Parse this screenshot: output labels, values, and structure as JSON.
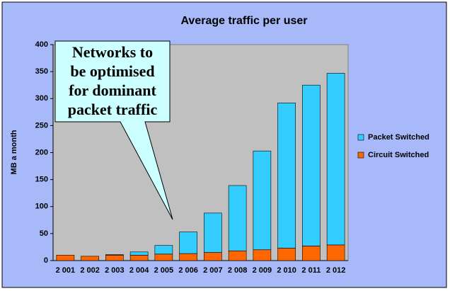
{
  "chart_data": {
    "type": "stacked_bar",
    "title": "Average traffic per user",
    "y_label": "MB a month",
    "categories": [
      "2 001",
      "2 002",
      "2 003",
      "2 004",
      "2 005",
      "2 006",
      "2 007",
      "2 008",
      "2 009",
      "2 010",
      "2 011",
      "2 012"
    ],
    "series": [
      {
        "name": "Circuit Switched",
        "color": "#ff6600",
        "values": [
          10,
          8,
          10,
          10,
          12,
          13,
          15,
          18,
          20,
          23,
          27,
          29
        ]
      },
      {
        "name": "Packet Switched",
        "color": "#33ccff",
        "values": [
          0,
          0,
          1,
          6,
          16,
          40,
          73,
          121,
          183,
          269,
          298,
          318
        ]
      }
    ],
    "ylim": [
      0,
      400
    ],
    "yticks": [
      0,
      50,
      100,
      150,
      200,
      250,
      300,
      350,
      400
    ],
    "grid": false,
    "legend": "right",
    "annotation": {
      "lines": [
        "Networks to",
        "be optimised",
        "for dominant",
        "packet traffic"
      ]
    }
  }
}
